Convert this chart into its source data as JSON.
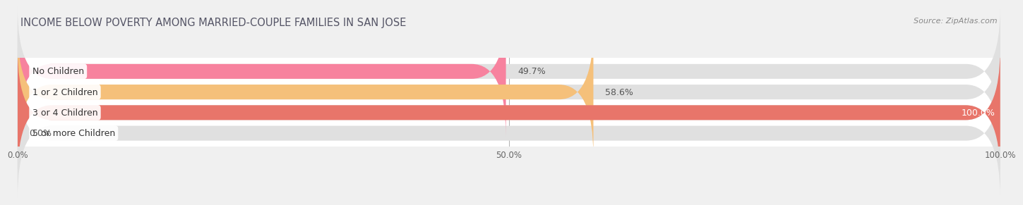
{
  "title": "INCOME BELOW POVERTY AMONG MARRIED-COUPLE FAMILIES IN SAN JOSE",
  "source": "Source: ZipAtlas.com",
  "categories": [
    "No Children",
    "1 or 2 Children",
    "3 or 4 Children",
    "5 or more Children"
  ],
  "values": [
    49.7,
    58.6,
    100.0,
    0.0
  ],
  "bar_colors": [
    "#f7829e",
    "#f5c07a",
    "#e8756a",
    "#a8c4e0"
  ],
  "xlim": [
    0,
    100
  ],
  "xticks": [
    0,
    50,
    100
  ],
  "xtick_labels": [
    "0.0%",
    "50.0%",
    "100.0%"
  ],
  "background_color": "#f0f0f0",
  "bar_bg_color": "#e0e0e0",
  "title_fontsize": 10.5,
  "bar_height": 0.72,
  "label_fontsize": 9,
  "value_fontsize": 9,
  "value_color_inside": "#ffffff",
  "value_color_outside": "#555555"
}
